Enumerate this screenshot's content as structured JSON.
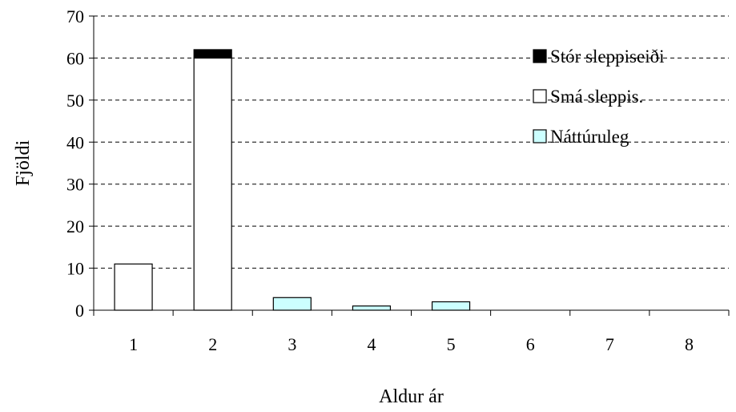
{
  "chart_data": {
    "type": "bar",
    "stacked": true,
    "categories": [
      "1",
      "2",
      "3",
      "4",
      "5",
      "6",
      "7",
      "8"
    ],
    "series": [
      {
        "name": "Náttúruleg",
        "values": [
          0,
          0,
          3,
          1,
          2,
          0,
          0,
          0
        ],
        "color": "#ccffff"
      },
      {
        "name": "Smá sleppis.",
        "values": [
          11,
          60,
          0,
          0,
          0,
          0,
          0,
          0
        ],
        "color": "#ffffff"
      },
      {
        "name": "Stór sleppiseiði",
        "values": [
          0,
          2,
          0,
          0,
          0,
          0,
          0,
          0
        ],
        "color": "#000000"
      }
    ],
    "legend_order": [
      "Stór sleppiseiði",
      "Smá sleppis.",
      "Náttúruleg"
    ],
    "xlabel": "Aldur ár",
    "ylabel": "Fjöldi",
    "ylim": [
      0,
      70
    ],
    "yticks": [
      0,
      10,
      20,
      30,
      40,
      50,
      60,
      70
    ],
    "grid": "horizontal dashed",
    "legend_placement": "top-right"
  }
}
